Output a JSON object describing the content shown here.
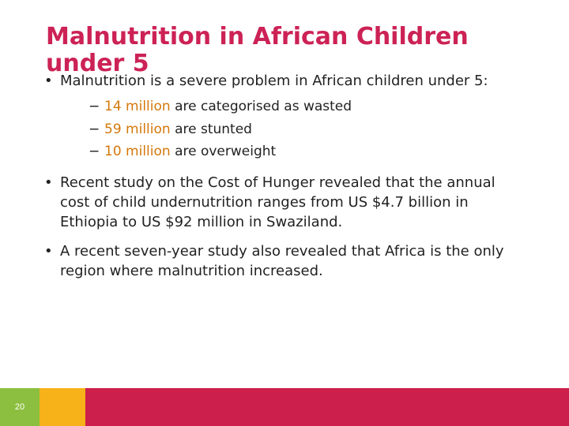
{
  "slide": {
    "title": "Malnutrition in African Children under 5",
    "bullet_glyph": "•",
    "dash_glyph": "−",
    "bullets": [
      {
        "text": "Malnutrition is a severe problem in African children under 5:",
        "sub": [
          {
            "num": "14 million",
            "rest": " are categorised as wasted"
          },
          {
            "num": "59 million",
            "rest": " are stunted"
          },
          {
            "num": "10 million",
            "rest": " are overweight"
          }
        ]
      },
      {
        "text": "Recent study on the Cost of Hunger revealed that the annual cost of child undernutrition ranges from US $4.7 billion in Ethiopia to US $92 million in Swaziland."
      },
      {
        "text": "A recent seven-year study also revealed that Africa is the only region where malnutrition increased."
      }
    ],
    "page_number": "20"
  },
  "colors": {
    "title": "#cc2255",
    "highlight": "#d4780a",
    "footer_green": "#8cbf3f",
    "footer_yellow": "#f7b21a",
    "footer_red": "#cc1f4b"
  }
}
